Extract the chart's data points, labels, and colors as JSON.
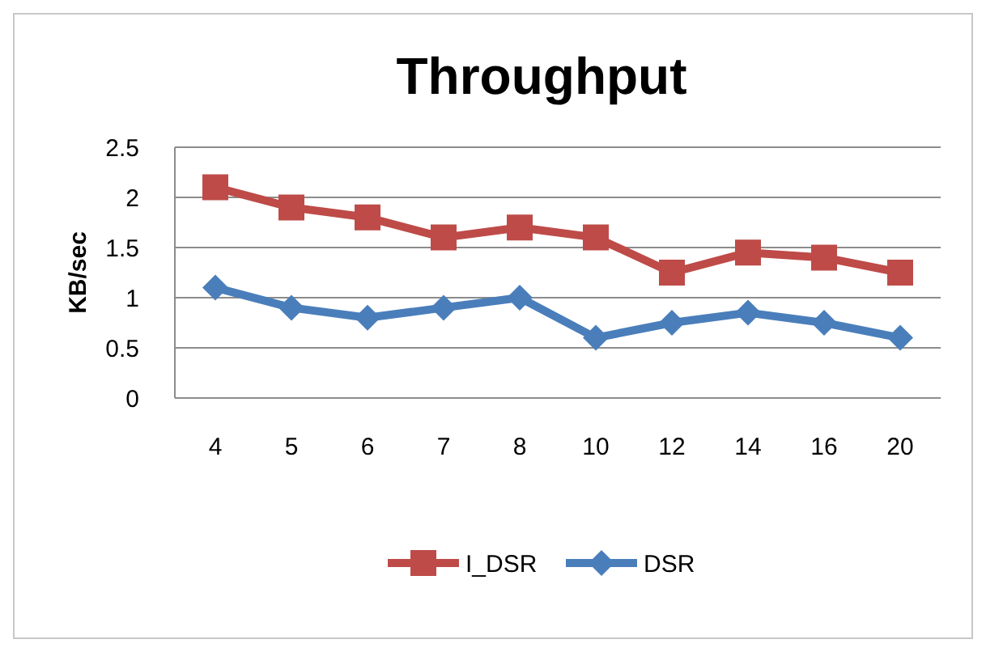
{
  "chart_data": {
    "type": "line",
    "title": "Throughput",
    "ylabel": "KB/sec",
    "categories": [
      "4",
      "5",
      "6",
      "7",
      "8",
      "10",
      "12",
      "14",
      "16",
      "20"
    ],
    "series": [
      {
        "name": "I_DSR",
        "color": "#be4b48",
        "marker": "square",
        "values": [
          2.1,
          1.9,
          1.8,
          1.6,
          1.7,
          1.6,
          1.25,
          1.45,
          1.4,
          1.25
        ]
      },
      {
        "name": "DSR",
        "color": "#4a7ebb",
        "marker": "diamond",
        "values": [
          1.1,
          0.9,
          0.8,
          0.9,
          1.0,
          0.6,
          0.75,
          0.85,
          0.75,
          0.6
        ]
      }
    ],
    "ylim": [
      0,
      2.5
    ],
    "yticks": [
      0,
      0.5,
      1,
      1.5,
      2,
      2.5
    ],
    "grid": "y",
    "legend": "bottom"
  }
}
